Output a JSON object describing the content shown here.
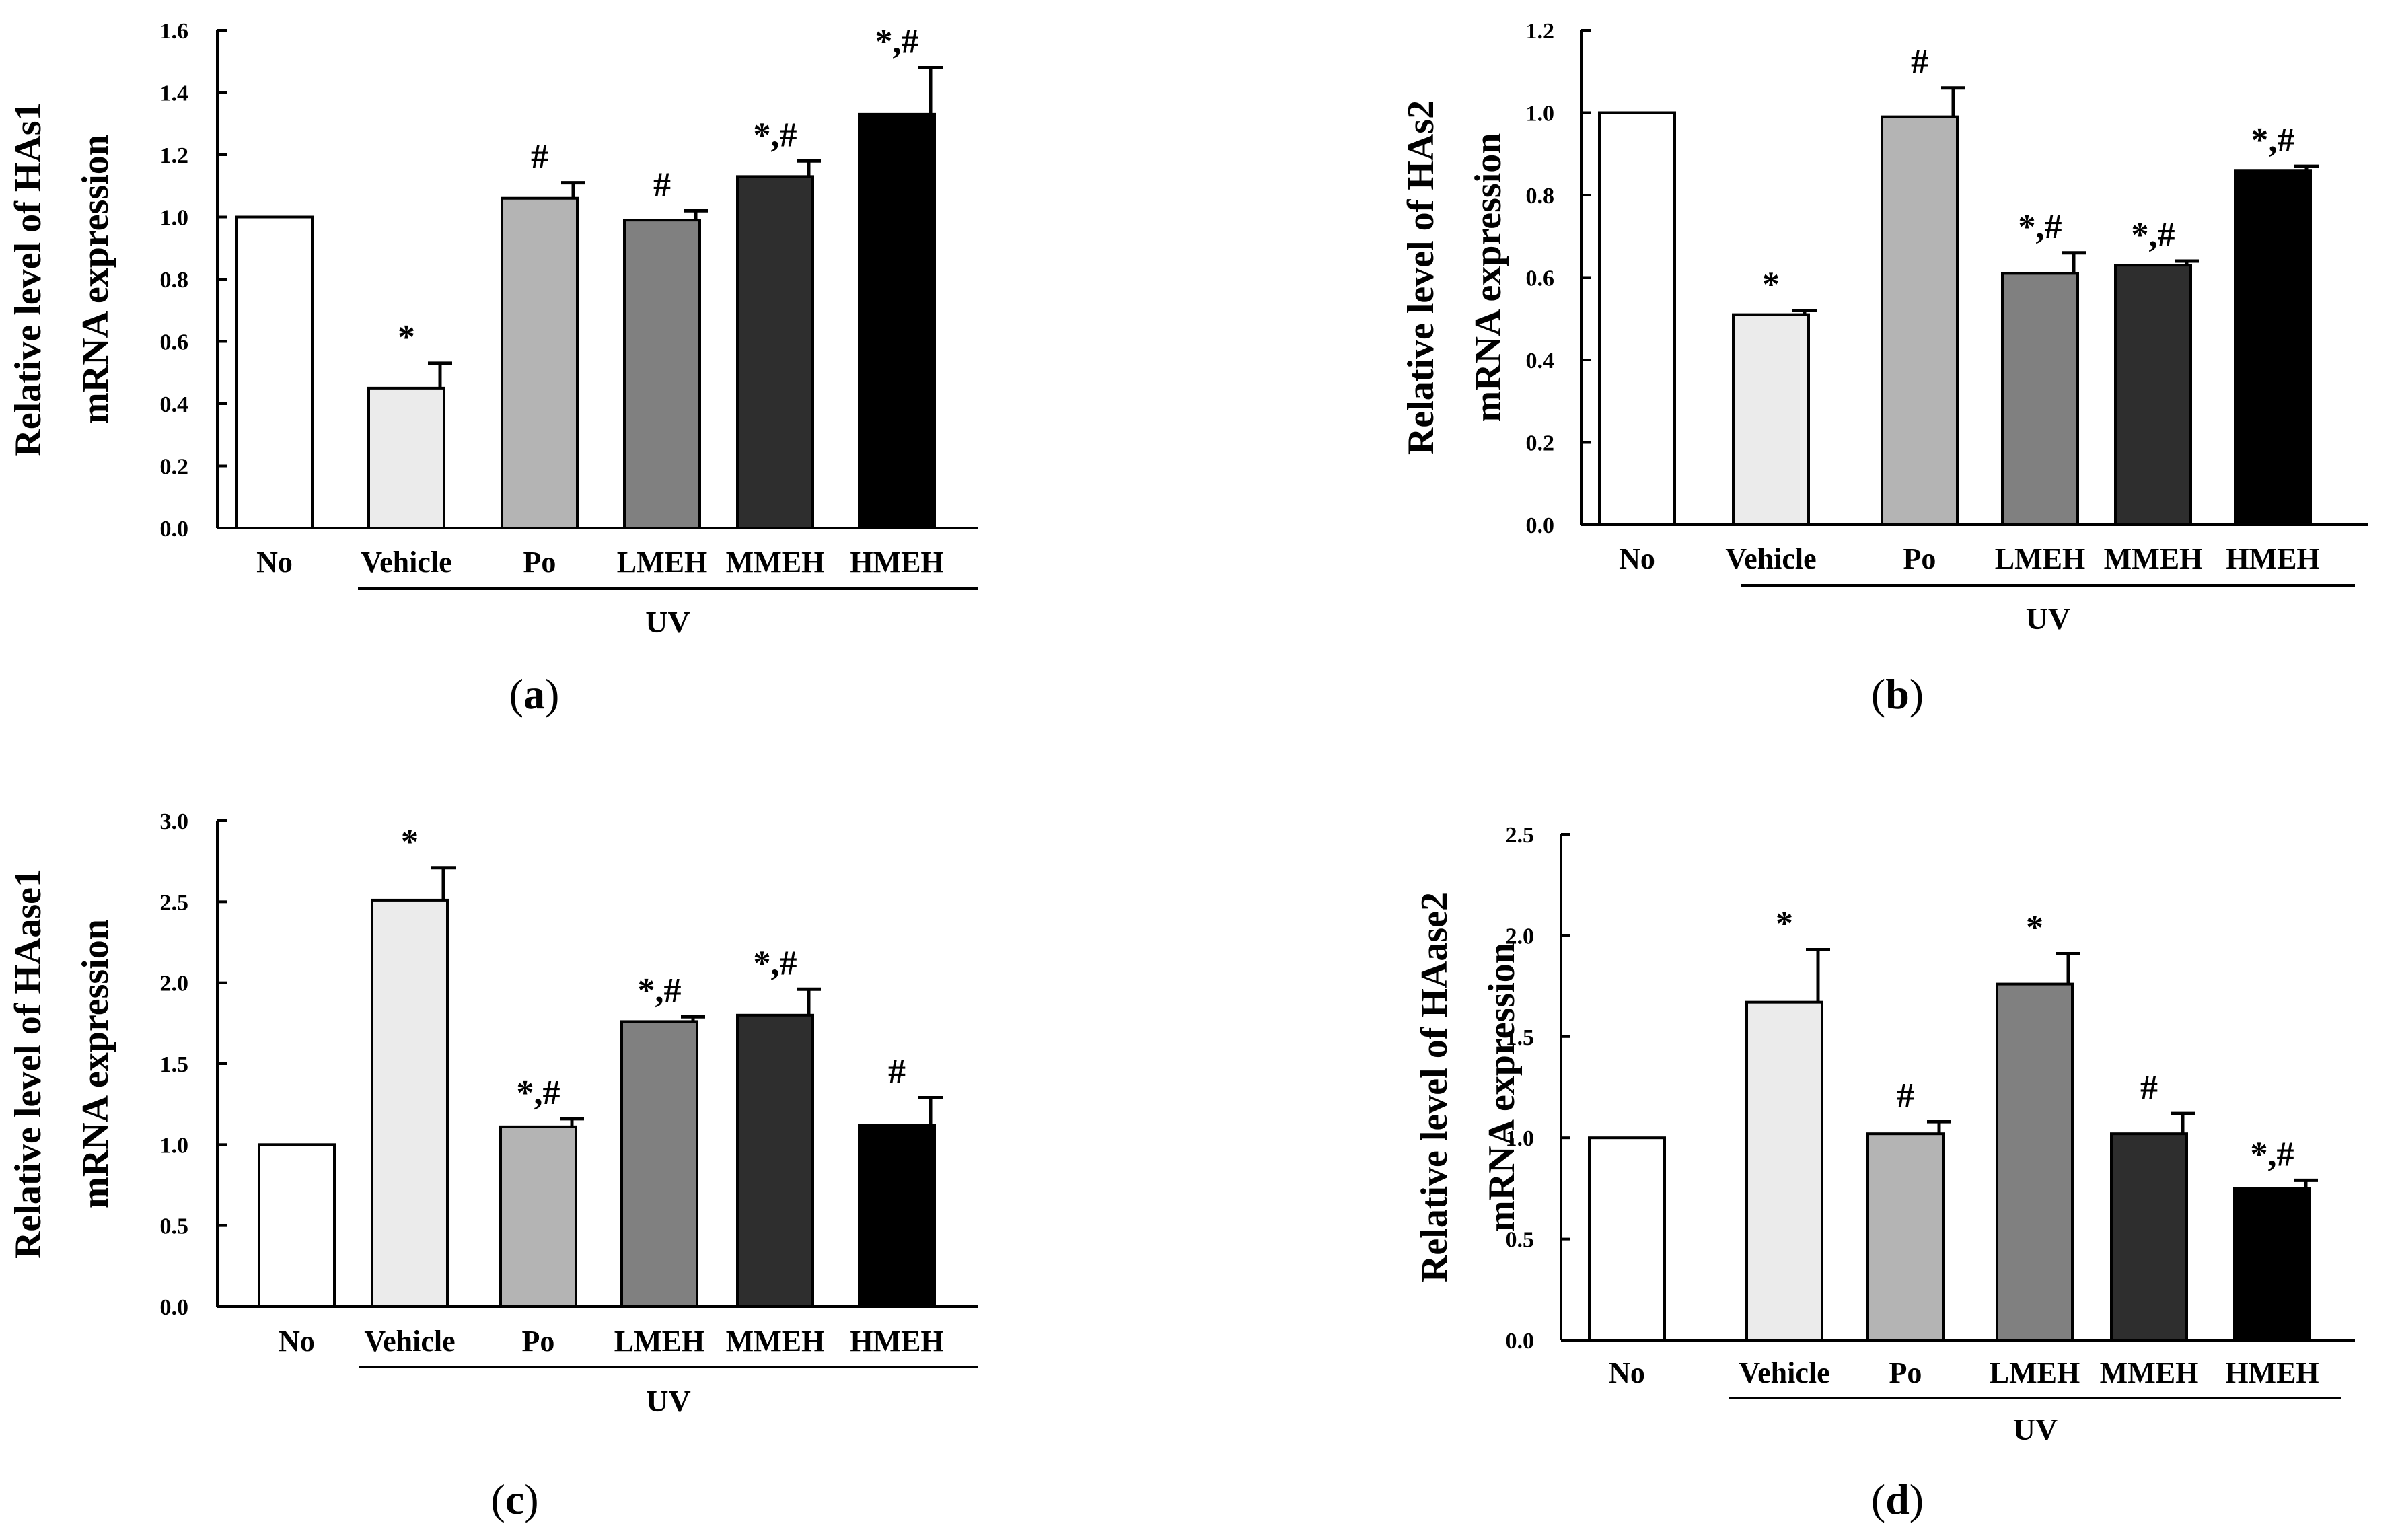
{
  "figure": {
    "colors": {
      "No": "#ffffff",
      "Vehicle": "#ebebeb",
      "Po": "#b4b4b4",
      "LMEH": "#808080",
      "MMEH": "#2e2e2e",
      "HMEH": "#000000",
      "axis": "#000000"
    }
  },
  "chart_data": [
    {
      "type": "bar",
      "panel_label": "a",
      "ylabel_line1": "Relative level of HAs1",
      "ylabel_line2": "mRNA expression",
      "group_label": "UV",
      "categories": [
        "No",
        "Vehicle",
        "Po",
        "LMEH",
        "MMEH",
        "HMEH"
      ],
      "values": [
        1.0,
        0.45,
        1.06,
        0.99,
        1.13,
        1.33
      ],
      "errors": [
        0.0,
        0.08,
        0.05,
        0.03,
        0.05,
        0.15
      ],
      "annotations": [
        "",
        "*",
        "#",
        "#",
        "*,#",
        "*,#"
      ],
      "ylim": [
        0,
        1.6
      ],
      "yticks": [
        "0.0",
        "0.2",
        "0.4",
        "0.6",
        "0.8",
        "1.0",
        "1.2",
        "1.4",
        "1.6"
      ]
    },
    {
      "type": "bar",
      "panel_label": "b",
      "ylabel_line1": "Relative level of HAs2",
      "ylabel_line2": "mRNA expression",
      "group_label": "UV",
      "categories": [
        "No",
        "Vehicle",
        "Po",
        "LMEH",
        "MMEH",
        "HMEH"
      ],
      "values": [
        1.0,
        0.51,
        0.99,
        0.61,
        0.63,
        0.86
      ],
      "errors": [
        0.0,
        0.01,
        0.07,
        0.05,
        0.01,
        0.01
      ],
      "annotations": [
        "",
        "*",
        "#",
        "*,#",
        "*,#",
        "*,#"
      ],
      "ylim": [
        0,
        1.2
      ],
      "yticks": [
        "0.0",
        "0.2",
        "0.4",
        "0.6",
        "0.8",
        "1.0",
        "1.2"
      ]
    },
    {
      "type": "bar",
      "panel_label": "c",
      "ylabel_line1": "Relative level of HAase1",
      "ylabel_line2": "mRNA expression",
      "group_label": "UV",
      "categories": [
        "No",
        "Vehicle",
        "Po",
        "LMEH",
        "MMEH",
        "HMEH"
      ],
      "values": [
        1.0,
        2.51,
        1.11,
        1.76,
        1.8,
        1.12
      ],
      "errors": [
        0.0,
        0.2,
        0.05,
        0.03,
        0.16,
        0.17
      ],
      "annotations": [
        "",
        "*",
        "*,#",
        "*,#",
        "*,#",
        "#"
      ],
      "ylim": [
        0,
        3.0
      ],
      "yticks": [
        "0.0",
        "0.5",
        "1.0",
        "1.5",
        "2.0",
        "2.5",
        "3.0"
      ]
    },
    {
      "type": "bar",
      "panel_label": "d",
      "ylabel_line1": "Relative level of HAase2",
      "ylabel_line2": "mRNA expression",
      "group_label": "UV",
      "categories": [
        "No",
        "Vehicle",
        "Po",
        "LMEH",
        "MMEH",
        "HMEH"
      ],
      "values": [
        1.0,
        1.67,
        1.02,
        1.76,
        1.02,
        0.75
      ],
      "errors": [
        0.0,
        0.26,
        0.06,
        0.15,
        0.1,
        0.04
      ],
      "annotations": [
        "",
        "*",
        "#",
        "*",
        "#",
        "*,#"
      ],
      "ylim": [
        0,
        2.5
      ],
      "yticks": [
        "0.0",
        "0.5",
        "1.0",
        "1.5",
        "2.0",
        "2.5"
      ]
    }
  ]
}
